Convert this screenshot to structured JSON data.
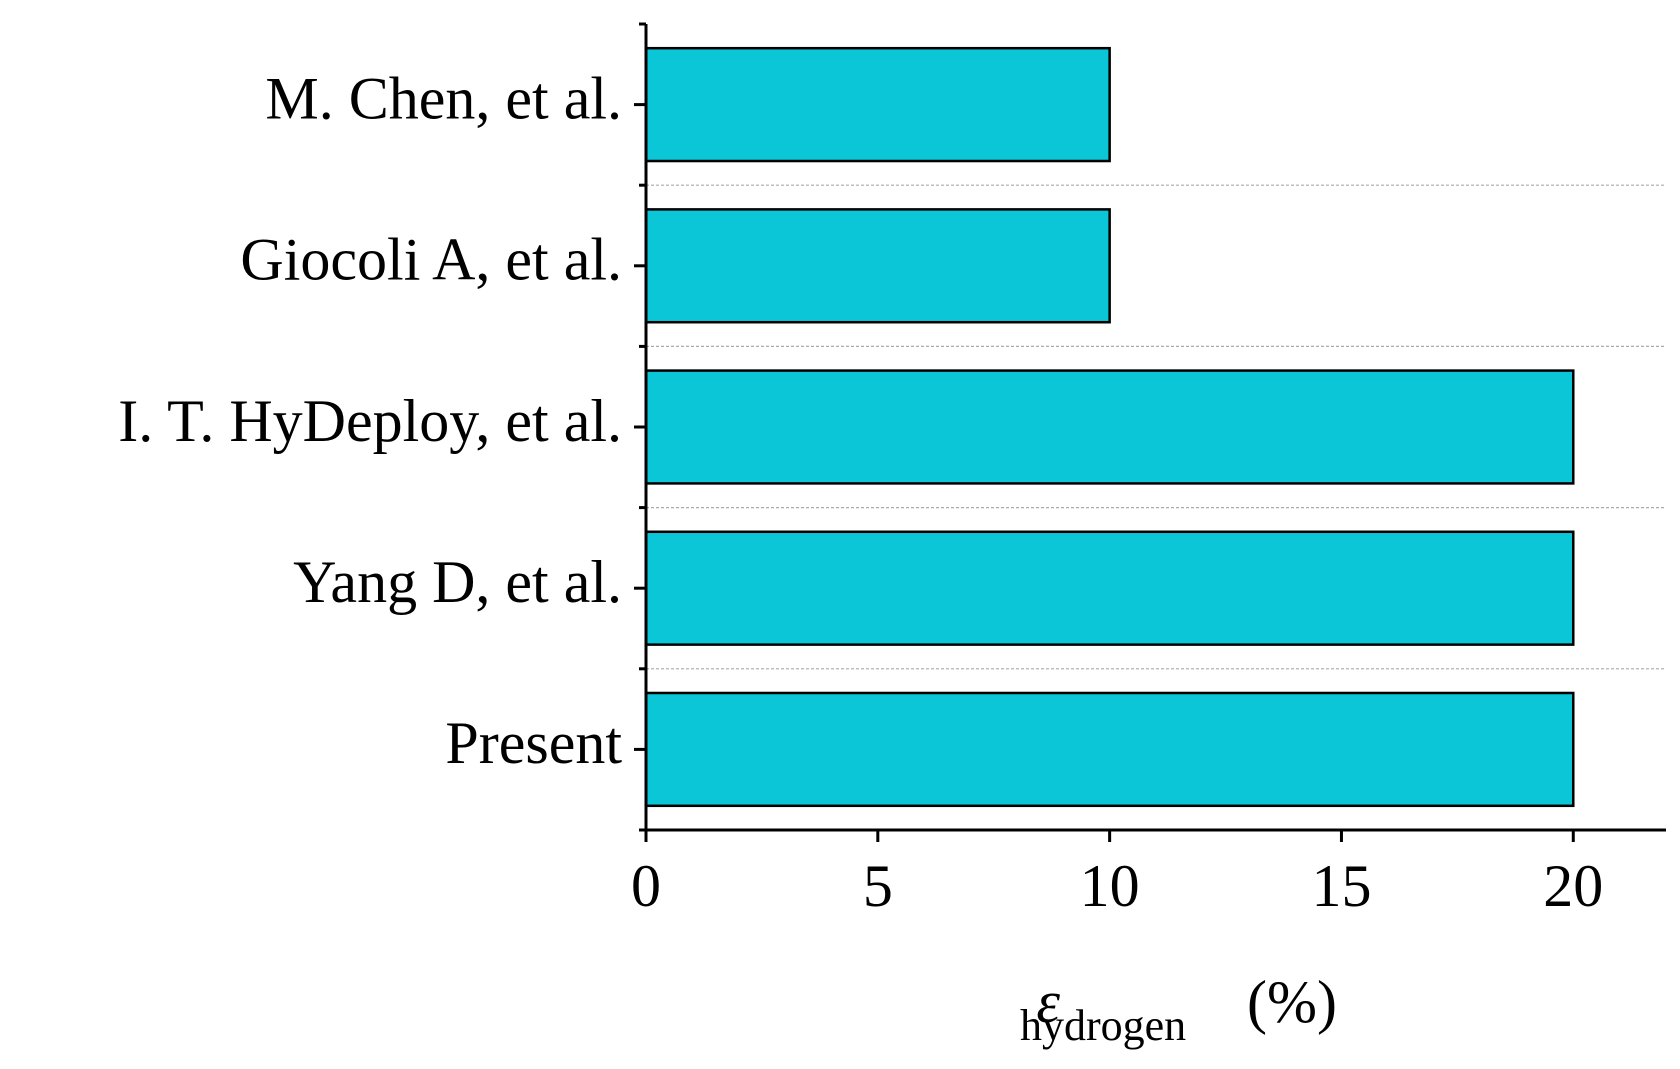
{
  "chart_data": {
    "type": "barh",
    "categories": [
      "M. Chen, et al.",
      "Giocoli A, et al.",
      "I. T. HyDeploy, et al.",
      "Yang D, et al.",
      "Present"
    ],
    "values": [
      10,
      10,
      20,
      20,
      20
    ],
    "color": "#0bc6d6",
    "xlim": [
      0,
      22
    ],
    "xticks": [
      0,
      5,
      10,
      15,
      20
    ],
    "xlabel": {
      "symbol": "ε",
      "subscript": "hydrogen",
      "unit": "(%)"
    },
    "grid": true
  }
}
